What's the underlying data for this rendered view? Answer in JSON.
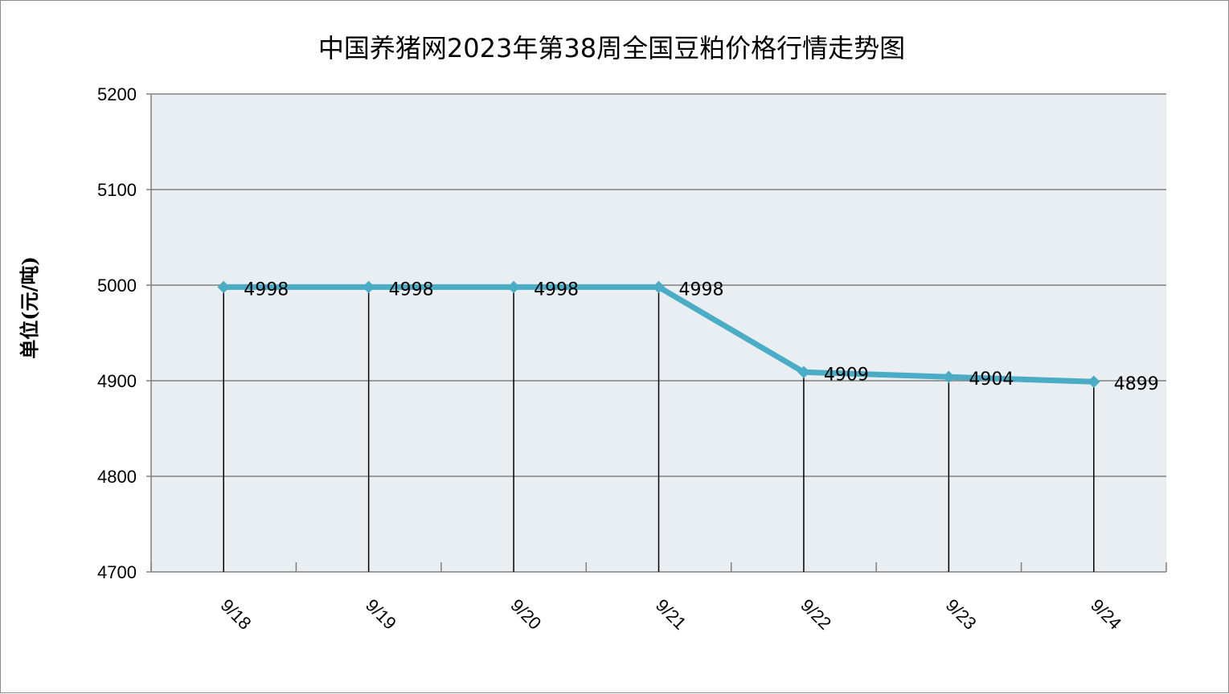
{
  "chart_data": {
    "type": "line",
    "title": "中国养猪网2023年第38周全国豆粕价格行情走势图",
    "xlabel": "",
    "ylabel": "单位(元/吨)",
    "categories": [
      "9/18",
      "9/19",
      "9/20",
      "9/21",
      "9/22",
      "9/23",
      "9/24"
    ],
    "series": [
      {
        "values": [
          4998,
          4998,
          4998,
          4998,
          4909,
          4904,
          4899
        ]
      }
    ],
    "data_labels": [
      "4998",
      "4998",
      "4998",
      "4998",
      "4909",
      "4904",
      "4899"
    ],
    "ylim": [
      4700,
      5200
    ],
    "yticks": [
      4700,
      4800,
      4900,
      5000,
      5100,
      5200
    ],
    "ytick_labels": [
      "4700",
      "4800",
      "4900",
      "5000",
      "5100",
      "5200"
    ],
    "grid": true,
    "drop_lines": true,
    "legend": "none",
    "colors": {
      "line": "#4bacc6",
      "plot_background": "#e8eef2",
      "gridline": "#808080",
      "drop_line": "#000000",
      "frame_border": "#8c8c8c"
    }
  }
}
